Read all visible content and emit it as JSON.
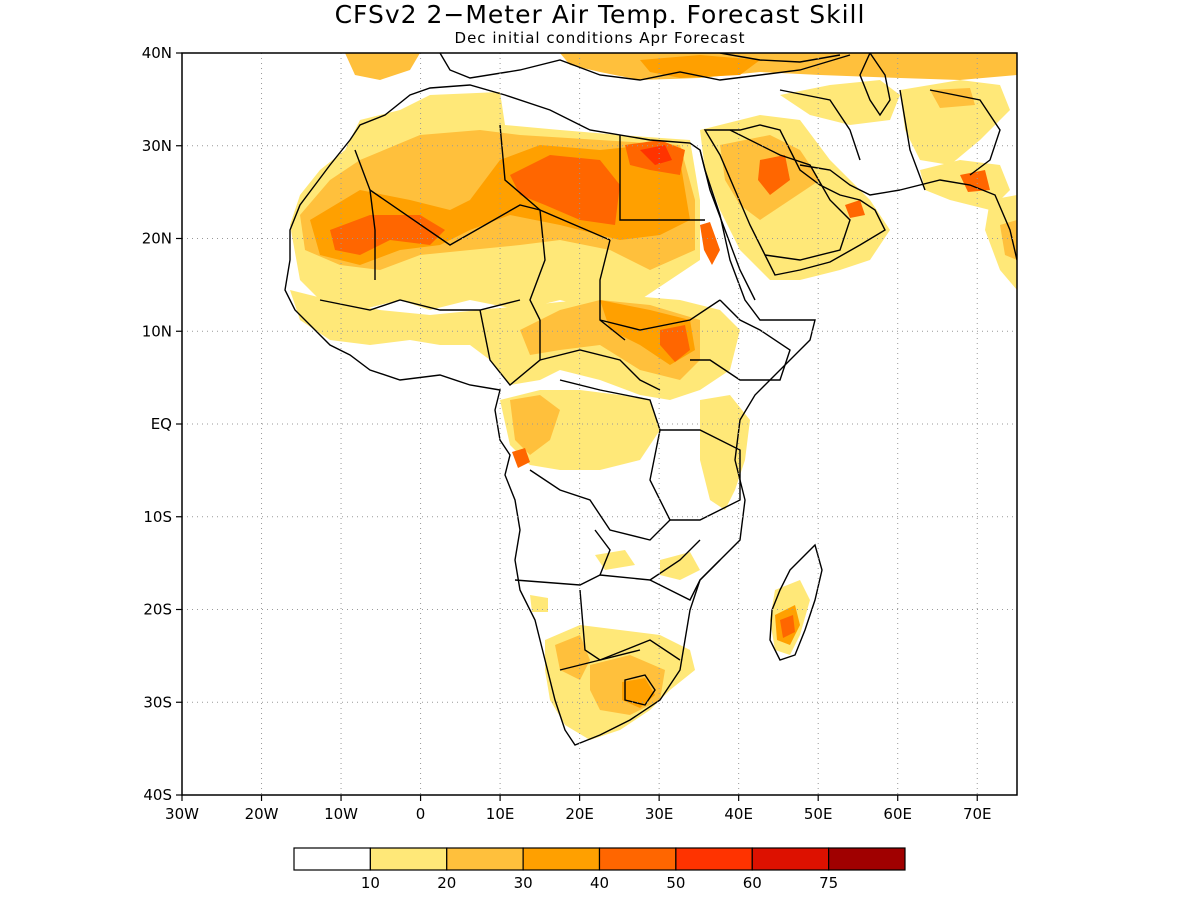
{
  "title": "CFSv2 2−Meter Air Temp. Forecast Skill",
  "subtitle": "Dec initial conditions  Apr Forecast",
  "map": {
    "lon_range": [
      -30,
      75
    ],
    "lat_range": [
      -40,
      40
    ],
    "lat_labels": [
      "40N",
      "30N",
      "20N",
      "10N",
      "EQ",
      "10S",
      "20S",
      "30S",
      "40S"
    ],
    "lon_labels": [
      "30W",
      "20W",
      "10W",
      "0",
      "10E",
      "20E",
      "30E",
      "40E",
      "50E",
      "60E",
      "70E"
    ],
    "grid": "dotted"
  },
  "colorbar": {
    "colors": [
      "#ffffff",
      "#ffe878",
      "#ffc03c",
      "#ffa000",
      "#ff6600",
      "#ff3300",
      "#dd1100",
      "#a00000"
    ],
    "labels": [
      "10",
      "20",
      "30",
      "40",
      "50",
      "60",
      "75"
    ]
  }
}
